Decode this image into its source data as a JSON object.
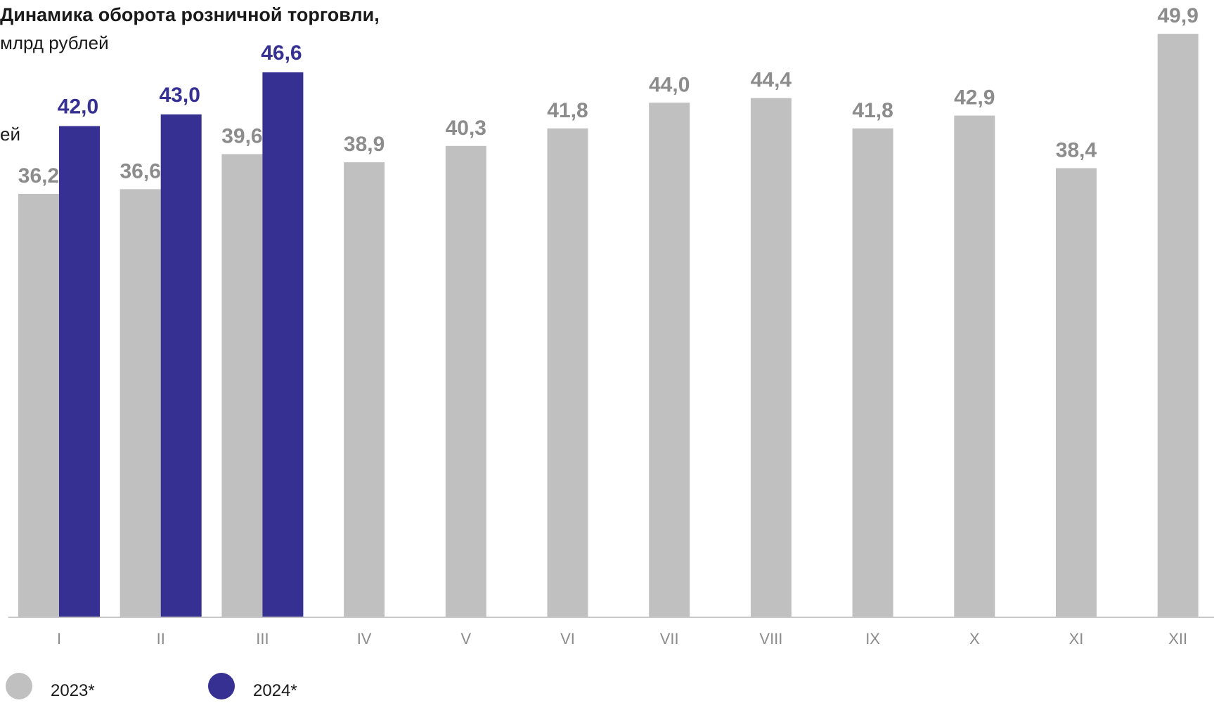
{
  "title": "Динамика оборота розничной торговли,",
  "subtitle": "млрд рублей",
  "cut_text": "ей",
  "legend": [
    {
      "label": "2023*",
      "color": "#c0c0c0"
    },
    {
      "label": "2024*",
      "color": "#363093"
    }
  ],
  "colors": {
    "series_2023": "#c0c0c0",
    "series_2024": "#363093",
    "label_2023": "#8c8c8c",
    "label_2024": "#363093",
    "axis": "#c8c8c8"
  },
  "chart_data": {
    "type": "bar",
    "categories": [
      "I",
      "II",
      "III",
      "IV",
      "V",
      "VI",
      "VII",
      "VIII",
      "IX",
      "X",
      "XI",
      "XII"
    ],
    "series": [
      {
        "name": "2023*",
        "values": [
          36.2,
          36.6,
          39.6,
          38.9,
          40.3,
          41.8,
          44.0,
          44.4,
          41.8,
          42.9,
          38.4,
          49.9
        ]
      },
      {
        "name": "2024*",
        "values": [
          42.0,
          43.0,
          46.6,
          null,
          null,
          null,
          null,
          null,
          null,
          null,
          null,
          null
        ]
      }
    ],
    "data_labels": [
      [
        "36,2",
        "36,6",
        "39,6",
        "38,9",
        "40,3",
        "41,8",
        "44,0",
        "44,4",
        "41,8",
        "42,9",
        "38,4",
        "49,9"
      ],
      [
        "42,0",
        "43,0",
        "46,6",
        null,
        null,
        null,
        null,
        null,
        null,
        null,
        null,
        null
      ]
    ],
    "title": "Динамика оборота розничной торговли,",
    "subtitle": "млрд рублей",
    "xlabel": "",
    "ylabel": "",
    "grid": false,
    "legend_position": "bottom-left"
  }
}
